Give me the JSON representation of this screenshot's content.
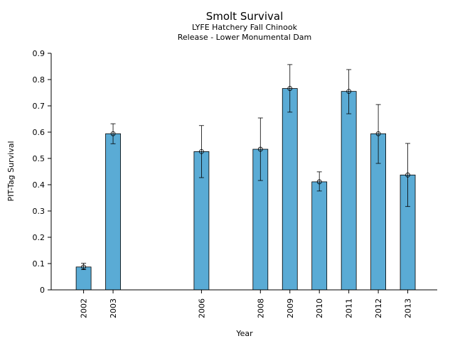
{
  "chart_data": {
    "type": "bar",
    "title": "Smolt Survival",
    "subtitle_lines": [
      "LYFE Hatchery Fall Chinook",
      "Release - Lower Monumental Dam"
    ],
    "xlabel": "Year",
    "ylabel": "PIT-Tag Survival",
    "ylim": [
      0,
      0.9
    ],
    "yticks": [
      "0",
      "0.1",
      "0.2",
      "0.3",
      "0.4",
      "0.5",
      "0.6",
      "0.7",
      "0.8",
      "0.9"
    ],
    "x_range": [
      2000.9,
      2014.0
    ],
    "grid": false,
    "color": "#5aabd5",
    "categories": [
      "2002",
      "2003",
      "2006",
      "2008",
      "2009",
      "2010",
      "2011",
      "2012",
      "2013"
    ],
    "x": [
      2002,
      2003,
      2006,
      2008,
      2009,
      2010,
      2011,
      2012,
      2013
    ],
    "values": [
      0.087,
      0.594,
      0.526,
      0.535,
      0.766,
      0.411,
      0.755,
      0.594,
      0.437
    ],
    "err_low": [
      0.077,
      0.556,
      0.427,
      0.416,
      0.676,
      0.376,
      0.67,
      0.481,
      0.317
    ],
    "err_high": [
      0.101,
      0.632,
      0.625,
      0.654,
      0.857,
      0.449,
      0.838,
      0.705,
      0.557
    ]
  }
}
